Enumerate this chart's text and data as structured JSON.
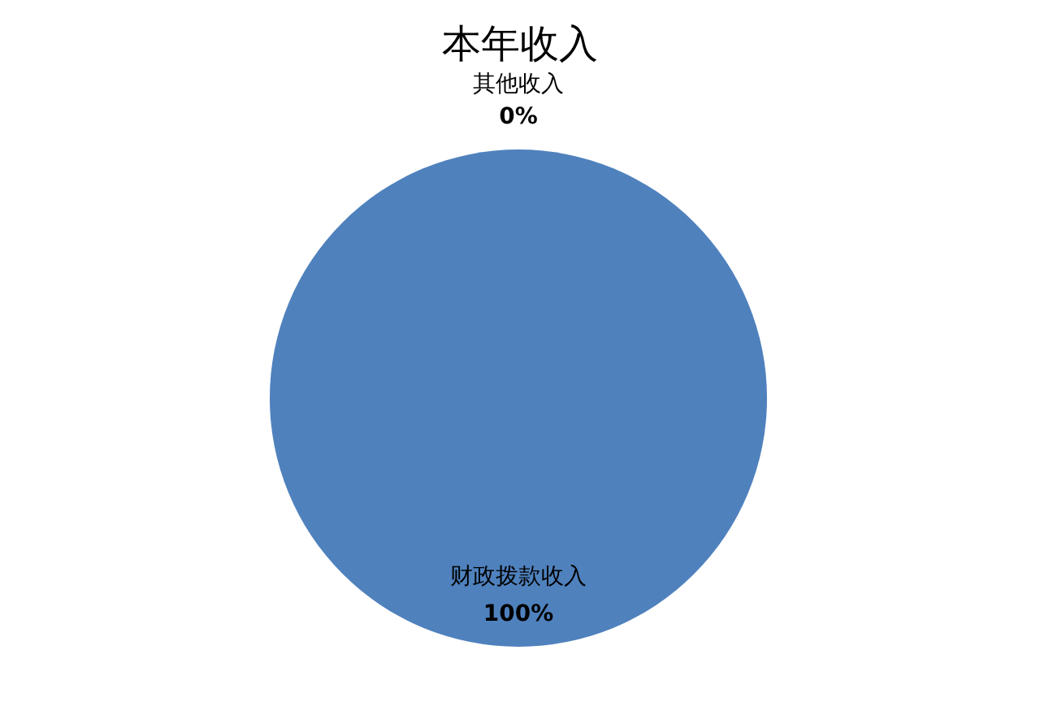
{
  "chart_data": {
    "type": "pie",
    "title": "本年收入",
    "categories": [
      "财政拨款收入",
      "其他收入"
    ],
    "values": [
      100,
      0
    ],
    "colors": [
      "#4f81bd",
      "#c0504d"
    ],
    "value_labels": [
      "100%",
      "0%"
    ],
    "legend": false
  }
}
